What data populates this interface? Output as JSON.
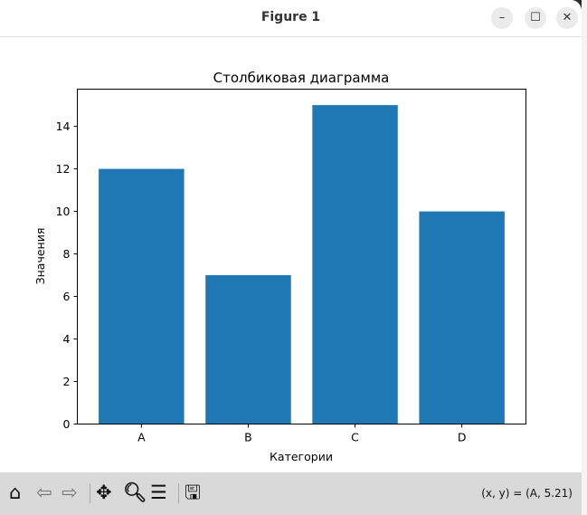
{
  "window": {
    "title": "Figure 1",
    "minimize": "–",
    "maximize": "☐",
    "close": "✕"
  },
  "toolbar": {
    "home": "home-icon",
    "back": "back-arrow-icon",
    "forward": "forward-arrow-icon",
    "pan": "move-icon",
    "zoom": "zoom-icon",
    "configure": "sliders-icon",
    "save": "save-icon",
    "coords": "(x, y) = (A, 5.21)"
  },
  "colors": {
    "bar": "#1f77b4"
  },
  "chart_data": {
    "type": "bar",
    "title": "Столбиковая диаграмма",
    "xlabel": "Категории",
    "ylabel": "Значения",
    "categories": [
      "A",
      "B",
      "C",
      "D"
    ],
    "values": [
      12,
      7,
      15,
      10
    ],
    "ylim": [
      0,
      15.75
    ],
    "yticks": [
      0,
      2,
      4,
      6,
      8,
      10,
      12,
      14
    ],
    "grid": false
  }
}
